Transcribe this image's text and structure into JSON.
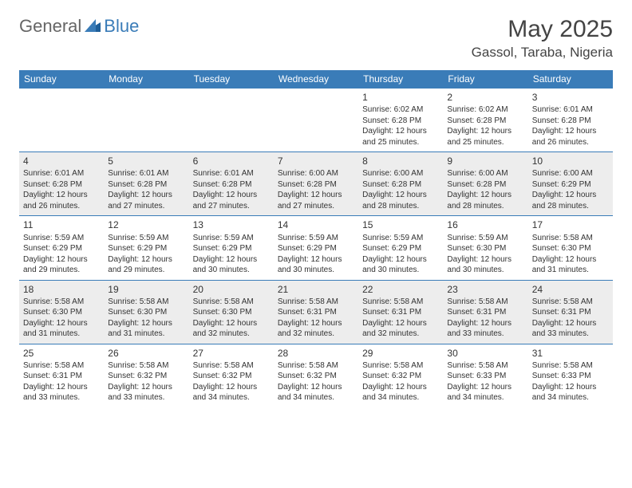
{
  "logo": {
    "part1": "General",
    "part2": "Blue"
  },
  "title": "May 2025",
  "location": "Gassol, Taraba, Nigeria",
  "colors": {
    "header_bg": "#3a7cb8",
    "alt_row_bg": "#ededed",
    "text": "#333333"
  },
  "weekdays": [
    "Sunday",
    "Monday",
    "Tuesday",
    "Wednesday",
    "Thursday",
    "Friday",
    "Saturday"
  ],
  "weeks": [
    [
      null,
      null,
      null,
      null,
      {
        "n": "1",
        "sr": "Sunrise: 6:02 AM",
        "ss": "Sunset: 6:28 PM",
        "d1": "Daylight: 12 hours",
        "d2": "and 25 minutes."
      },
      {
        "n": "2",
        "sr": "Sunrise: 6:02 AM",
        "ss": "Sunset: 6:28 PM",
        "d1": "Daylight: 12 hours",
        "d2": "and 25 minutes."
      },
      {
        "n": "3",
        "sr": "Sunrise: 6:01 AM",
        "ss": "Sunset: 6:28 PM",
        "d1": "Daylight: 12 hours",
        "d2": "and 26 minutes."
      }
    ],
    [
      {
        "n": "4",
        "sr": "Sunrise: 6:01 AM",
        "ss": "Sunset: 6:28 PM",
        "d1": "Daylight: 12 hours",
        "d2": "and 26 minutes."
      },
      {
        "n": "5",
        "sr": "Sunrise: 6:01 AM",
        "ss": "Sunset: 6:28 PM",
        "d1": "Daylight: 12 hours",
        "d2": "and 27 minutes."
      },
      {
        "n": "6",
        "sr": "Sunrise: 6:01 AM",
        "ss": "Sunset: 6:28 PM",
        "d1": "Daylight: 12 hours",
        "d2": "and 27 minutes."
      },
      {
        "n": "7",
        "sr": "Sunrise: 6:00 AM",
        "ss": "Sunset: 6:28 PM",
        "d1": "Daylight: 12 hours",
        "d2": "and 27 minutes."
      },
      {
        "n": "8",
        "sr": "Sunrise: 6:00 AM",
        "ss": "Sunset: 6:28 PM",
        "d1": "Daylight: 12 hours",
        "d2": "and 28 minutes."
      },
      {
        "n": "9",
        "sr": "Sunrise: 6:00 AM",
        "ss": "Sunset: 6:28 PM",
        "d1": "Daylight: 12 hours",
        "d2": "and 28 minutes."
      },
      {
        "n": "10",
        "sr": "Sunrise: 6:00 AM",
        "ss": "Sunset: 6:29 PM",
        "d1": "Daylight: 12 hours",
        "d2": "and 28 minutes."
      }
    ],
    [
      {
        "n": "11",
        "sr": "Sunrise: 5:59 AM",
        "ss": "Sunset: 6:29 PM",
        "d1": "Daylight: 12 hours",
        "d2": "and 29 minutes."
      },
      {
        "n": "12",
        "sr": "Sunrise: 5:59 AM",
        "ss": "Sunset: 6:29 PM",
        "d1": "Daylight: 12 hours",
        "d2": "and 29 minutes."
      },
      {
        "n": "13",
        "sr": "Sunrise: 5:59 AM",
        "ss": "Sunset: 6:29 PM",
        "d1": "Daylight: 12 hours",
        "d2": "and 30 minutes."
      },
      {
        "n": "14",
        "sr": "Sunrise: 5:59 AM",
        "ss": "Sunset: 6:29 PM",
        "d1": "Daylight: 12 hours",
        "d2": "and 30 minutes."
      },
      {
        "n": "15",
        "sr": "Sunrise: 5:59 AM",
        "ss": "Sunset: 6:29 PM",
        "d1": "Daylight: 12 hours",
        "d2": "and 30 minutes."
      },
      {
        "n": "16",
        "sr": "Sunrise: 5:59 AM",
        "ss": "Sunset: 6:30 PM",
        "d1": "Daylight: 12 hours",
        "d2": "and 30 minutes."
      },
      {
        "n": "17",
        "sr": "Sunrise: 5:58 AM",
        "ss": "Sunset: 6:30 PM",
        "d1": "Daylight: 12 hours",
        "d2": "and 31 minutes."
      }
    ],
    [
      {
        "n": "18",
        "sr": "Sunrise: 5:58 AM",
        "ss": "Sunset: 6:30 PM",
        "d1": "Daylight: 12 hours",
        "d2": "and 31 minutes."
      },
      {
        "n": "19",
        "sr": "Sunrise: 5:58 AM",
        "ss": "Sunset: 6:30 PM",
        "d1": "Daylight: 12 hours",
        "d2": "and 31 minutes."
      },
      {
        "n": "20",
        "sr": "Sunrise: 5:58 AM",
        "ss": "Sunset: 6:30 PM",
        "d1": "Daylight: 12 hours",
        "d2": "and 32 minutes."
      },
      {
        "n": "21",
        "sr": "Sunrise: 5:58 AM",
        "ss": "Sunset: 6:31 PM",
        "d1": "Daylight: 12 hours",
        "d2": "and 32 minutes."
      },
      {
        "n": "22",
        "sr": "Sunrise: 5:58 AM",
        "ss": "Sunset: 6:31 PM",
        "d1": "Daylight: 12 hours",
        "d2": "and 32 minutes."
      },
      {
        "n": "23",
        "sr": "Sunrise: 5:58 AM",
        "ss": "Sunset: 6:31 PM",
        "d1": "Daylight: 12 hours",
        "d2": "and 33 minutes."
      },
      {
        "n": "24",
        "sr": "Sunrise: 5:58 AM",
        "ss": "Sunset: 6:31 PM",
        "d1": "Daylight: 12 hours",
        "d2": "and 33 minutes."
      }
    ],
    [
      {
        "n": "25",
        "sr": "Sunrise: 5:58 AM",
        "ss": "Sunset: 6:31 PM",
        "d1": "Daylight: 12 hours",
        "d2": "and 33 minutes."
      },
      {
        "n": "26",
        "sr": "Sunrise: 5:58 AM",
        "ss": "Sunset: 6:32 PM",
        "d1": "Daylight: 12 hours",
        "d2": "and 33 minutes."
      },
      {
        "n": "27",
        "sr": "Sunrise: 5:58 AM",
        "ss": "Sunset: 6:32 PM",
        "d1": "Daylight: 12 hours",
        "d2": "and 34 minutes."
      },
      {
        "n": "28",
        "sr": "Sunrise: 5:58 AM",
        "ss": "Sunset: 6:32 PM",
        "d1": "Daylight: 12 hours",
        "d2": "and 34 minutes."
      },
      {
        "n": "29",
        "sr": "Sunrise: 5:58 AM",
        "ss": "Sunset: 6:32 PM",
        "d1": "Daylight: 12 hours",
        "d2": "and 34 minutes."
      },
      {
        "n": "30",
        "sr": "Sunrise: 5:58 AM",
        "ss": "Sunset: 6:33 PM",
        "d1": "Daylight: 12 hours",
        "d2": "and 34 minutes."
      },
      {
        "n": "31",
        "sr": "Sunrise: 5:58 AM",
        "ss": "Sunset: 6:33 PM",
        "d1": "Daylight: 12 hours",
        "d2": "and 34 minutes."
      }
    ]
  ]
}
